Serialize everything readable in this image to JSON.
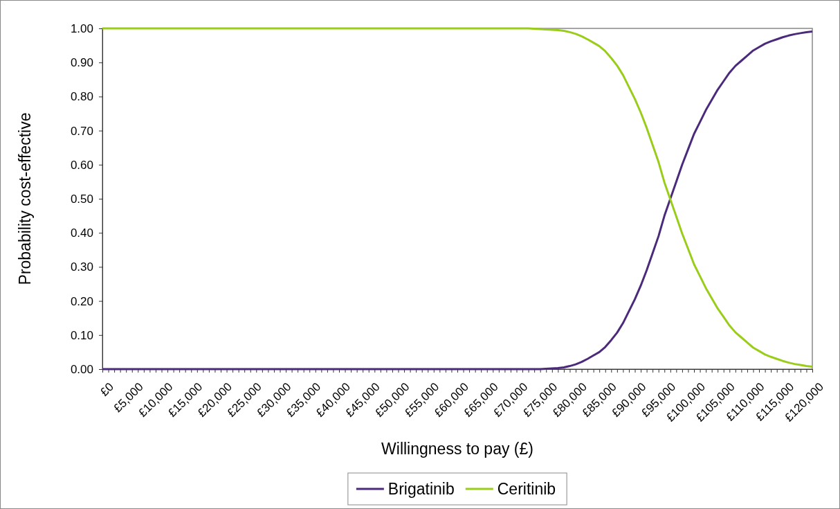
{
  "chart_data": {
    "type": "line",
    "xlabel": "Willingness to pay (£)",
    "ylabel": "Probability cost-effective",
    "legend": "bottom",
    "grid": false,
    "xlim": [
      0,
      120000
    ],
    "ylim": [
      0,
      1
    ],
    "yticks": [
      {
        "value": 0,
        "label": "0.00"
      },
      {
        "value": 0.1,
        "label": "0.10"
      },
      {
        "value": 0.2,
        "label": "0.20"
      },
      {
        "value": 0.3,
        "label": "0.30"
      },
      {
        "value": 0.4,
        "label": "0.40"
      },
      {
        "value": 0.5,
        "label": "0.50"
      },
      {
        "value": 0.6,
        "label": "0.60"
      },
      {
        "value": 0.7,
        "label": "0.70"
      },
      {
        "value": 0.8,
        "label": "0.80"
      },
      {
        "value": 0.9,
        "label": "0.90"
      },
      {
        "value": 1,
        "label": "1.00"
      }
    ],
    "xticks": [
      {
        "value": 0,
        "label": "£0"
      },
      {
        "value": 1000,
        "label": null
      },
      {
        "value": 2000,
        "label": null
      },
      {
        "value": 3000,
        "label": null
      },
      {
        "value": 4000,
        "label": null
      },
      {
        "value": 5000,
        "label": "£5,000"
      },
      {
        "value": 6000,
        "label": null
      },
      {
        "value": 7000,
        "label": null
      },
      {
        "value": 8000,
        "label": null
      },
      {
        "value": 9000,
        "label": null
      },
      {
        "value": 10000,
        "label": "£10,000"
      },
      {
        "value": 11000,
        "label": null
      },
      {
        "value": 12000,
        "label": null
      },
      {
        "value": 13000,
        "label": null
      },
      {
        "value": 14000,
        "label": null
      },
      {
        "value": 15000,
        "label": "£15,000"
      },
      {
        "value": 16000,
        "label": null
      },
      {
        "value": 17000,
        "label": null
      },
      {
        "value": 18000,
        "label": null
      },
      {
        "value": 19000,
        "label": null
      },
      {
        "value": 20000,
        "label": "£20,000"
      },
      {
        "value": 21000,
        "label": null
      },
      {
        "value": 22000,
        "label": null
      },
      {
        "value": 23000,
        "label": null
      },
      {
        "value": 24000,
        "label": null
      },
      {
        "value": 25000,
        "label": "£25,000"
      },
      {
        "value": 26000,
        "label": null
      },
      {
        "value": 27000,
        "label": null
      },
      {
        "value": 28000,
        "label": null
      },
      {
        "value": 29000,
        "label": null
      },
      {
        "value": 30000,
        "label": "£30,000"
      },
      {
        "value": 31000,
        "label": null
      },
      {
        "value": 32000,
        "label": null
      },
      {
        "value": 33000,
        "label": null
      },
      {
        "value": 34000,
        "label": null
      },
      {
        "value": 35000,
        "label": "£35,000"
      },
      {
        "value": 36000,
        "label": null
      },
      {
        "value": 37000,
        "label": null
      },
      {
        "value": 38000,
        "label": null
      },
      {
        "value": 39000,
        "label": null
      },
      {
        "value": 40000,
        "label": "£40,000"
      },
      {
        "value": 41000,
        "label": null
      },
      {
        "value": 42000,
        "label": null
      },
      {
        "value": 43000,
        "label": null
      },
      {
        "value": 44000,
        "label": null
      },
      {
        "value": 45000,
        "label": "£45,000"
      },
      {
        "value": 46000,
        "label": null
      },
      {
        "value": 47000,
        "label": null
      },
      {
        "value": 48000,
        "label": null
      },
      {
        "value": 49000,
        "label": null
      },
      {
        "value": 50000,
        "label": "£50,000"
      },
      {
        "value": 51000,
        "label": null
      },
      {
        "value": 52000,
        "label": null
      },
      {
        "value": 53000,
        "label": null
      },
      {
        "value": 54000,
        "label": null
      },
      {
        "value": 55000,
        "label": "£55,000"
      },
      {
        "value": 56000,
        "label": null
      },
      {
        "value": 57000,
        "label": null
      },
      {
        "value": 58000,
        "label": null
      },
      {
        "value": 59000,
        "label": null
      },
      {
        "value": 60000,
        "label": "£60,000"
      },
      {
        "value": 61000,
        "label": null
      },
      {
        "value": 62000,
        "label": null
      },
      {
        "value": 63000,
        "label": null
      },
      {
        "value": 64000,
        "label": null
      },
      {
        "value": 65000,
        "label": "£65,000"
      },
      {
        "value": 66000,
        "label": null
      },
      {
        "value": 67000,
        "label": null
      },
      {
        "value": 68000,
        "label": null
      },
      {
        "value": 69000,
        "label": null
      },
      {
        "value": 70000,
        "label": "£70,000"
      },
      {
        "value": 71000,
        "label": null
      },
      {
        "value": 72000,
        "label": null
      },
      {
        "value": 73000,
        "label": null
      },
      {
        "value": 74000,
        "label": null
      },
      {
        "value": 75000,
        "label": "£75,000"
      },
      {
        "value": 76000,
        "label": null
      },
      {
        "value": 77000,
        "label": null
      },
      {
        "value": 78000,
        "label": null
      },
      {
        "value": 79000,
        "label": null
      },
      {
        "value": 80000,
        "label": "£80,000"
      },
      {
        "value": 81000,
        "label": null
      },
      {
        "value": 82000,
        "label": null
      },
      {
        "value": 83000,
        "label": null
      },
      {
        "value": 84000,
        "label": null
      },
      {
        "value": 85000,
        "label": "£85,000"
      },
      {
        "value": 86000,
        "label": null
      },
      {
        "value": 87000,
        "label": null
      },
      {
        "value": 88000,
        "label": null
      },
      {
        "value": 89000,
        "label": null
      },
      {
        "value": 90000,
        "label": "£90,000"
      },
      {
        "value": 91000,
        "label": null
      },
      {
        "value": 92000,
        "label": null
      },
      {
        "value": 93000,
        "label": null
      },
      {
        "value": 94000,
        "label": null
      },
      {
        "value": 95000,
        "label": "£95,000"
      },
      {
        "value": 96000,
        "label": null
      },
      {
        "value": 97000,
        "label": null
      },
      {
        "value": 98000,
        "label": null
      },
      {
        "value": 99000,
        "label": null
      },
      {
        "value": 100000,
        "label": "£100,000"
      },
      {
        "value": 101000,
        "label": null
      },
      {
        "value": 102000,
        "label": null
      },
      {
        "value": 103000,
        "label": null
      },
      {
        "value": 104000,
        "label": null
      },
      {
        "value": 105000,
        "label": "£105,000"
      },
      {
        "value": 106000,
        "label": null
      },
      {
        "value": 107000,
        "label": null
      },
      {
        "value": 108000,
        "label": null
      },
      {
        "value": 109000,
        "label": null
      },
      {
        "value": 110000,
        "label": "£110,000"
      },
      {
        "value": 111000,
        "label": null
      },
      {
        "value": 112000,
        "label": null
      },
      {
        "value": 113000,
        "label": null
      },
      {
        "value": 114000,
        "label": null
      },
      {
        "value": 115000,
        "label": "£115,000"
      },
      {
        "value": 116000,
        "label": null
      },
      {
        "value": 117000,
        "label": null
      },
      {
        "value": 118000,
        "label": null
      },
      {
        "value": 119000,
        "label": null
      },
      {
        "value": 120000,
        "label": "£120,000"
      }
    ],
    "x": [
      0,
      72000,
      73000,
      74000,
      75000,
      76000,
      77000,
      78000,
      79000,
      80000,
      81000,
      82000,
      83000,
      84000,
      85000,
      86000,
      87000,
      88000,
      89000,
      90000,
      91000,
      92000,
      93000,
      94000,
      95000,
      96000,
      97000,
      98000,
      99000,
      100000,
      101000,
      102000,
      103000,
      104000,
      105000,
      106000,
      107000,
      108000,
      109000,
      110000,
      111000,
      112000,
      113000,
      114000,
      115000,
      116000,
      117000,
      118000,
      119000,
      120000
    ],
    "series": [
      {
        "name": "Brigatinib",
        "color": "#4b2a7b",
        "values": [
          0,
          0,
          0,
          0,
          0.001,
          0.002,
          0.003,
          0.005,
          0.009,
          0.014,
          0.021,
          0.03,
          0.04,
          0.05,
          0.065,
          0.085,
          0.107,
          0.135,
          0.17,
          0.205,
          0.245,
          0.29,
          0.34,
          0.39,
          0.45,
          0.5,
          0.55,
          0.6,
          0.645,
          0.69,
          0.725,
          0.76,
          0.79,
          0.82,
          0.845,
          0.87,
          0.89,
          0.905,
          0.92,
          0.935,
          0.945,
          0.955,
          0.962,
          0.968,
          0.974,
          0.979,
          0.983,
          0.986,
          0.989,
          0.991
        ]
      },
      {
        "name": "Ceritinib",
        "color": "#9acd1a",
        "values": [
          1,
          1,
          0.999,
          0.998,
          0.997,
          0.996,
          0.995,
          0.993,
          0.989,
          0.984,
          0.977,
          0.968,
          0.958,
          0.948,
          0.933,
          0.913,
          0.891,
          0.863,
          0.828,
          0.793,
          0.753,
          0.708,
          0.658,
          0.608,
          0.548,
          0.498,
          0.448,
          0.398,
          0.353,
          0.308,
          0.273,
          0.238,
          0.208,
          0.178,
          0.153,
          0.128,
          0.108,
          0.093,
          0.078,
          0.063,
          0.053,
          0.043,
          0.036,
          0.03,
          0.024,
          0.019,
          0.015,
          0.012,
          0.009,
          0.007
        ]
      }
    ]
  }
}
